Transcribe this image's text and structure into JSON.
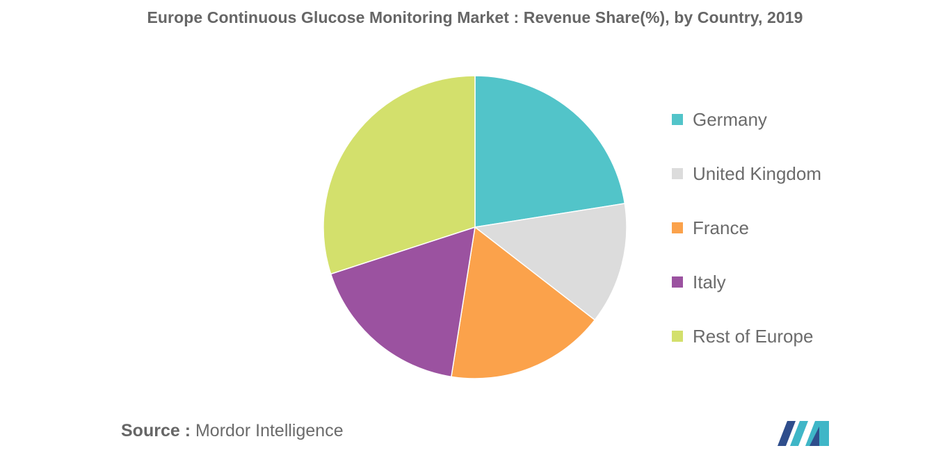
{
  "chart_data": {
    "type": "pie",
    "title": "Europe Continuous Glucose Monitoring Market : Revenue Share(%), by Country, 2019",
    "categories": [
      "Germany",
      "United Kingdom",
      "France",
      "Italy",
      "Rest of Europe"
    ],
    "values": [
      22.5,
      13.0,
      17.0,
      17.5,
      30.0
    ],
    "colors": [
      "#52c4c9",
      "#dcdcdc",
      "#fba24b",
      "#9b52a0",
      "#d3e06c"
    ],
    "start_angle_deg": 0,
    "direction": "clockwise",
    "legend_position": "right"
  },
  "source": {
    "label": "Source :",
    "text": "Mordor Intelligence"
  },
  "logo": {
    "icon": "mordor-intelligence-logo",
    "colors": [
      "#2f4e8c",
      "#3fb6c7"
    ]
  }
}
